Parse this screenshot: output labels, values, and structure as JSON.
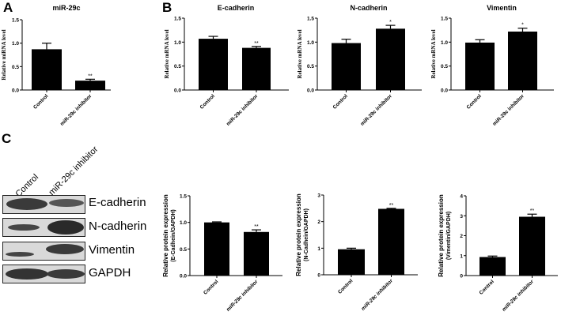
{
  "panels": {
    "A": "A",
    "B": "B",
    "C": "C"
  },
  "western_blot": {
    "lanes": [
      "Control",
      "miR-29c inhibitor"
    ],
    "bands": [
      "E-cadherin",
      "N-cadherin",
      "Vimentin",
      "GAPDH"
    ]
  },
  "chart_data": [
    {
      "id": "A",
      "type": "bar",
      "title": "miR-29c",
      "ylabel": "Relative miRNA level",
      "xlabel": "",
      "categories": [
        "Control",
        "miR-29c inhibitor"
      ],
      "values": [
        0.87,
        0.2
      ],
      "errors": [
        0.13,
        0.03
      ],
      "significance": [
        "",
        "**"
      ],
      "ylim": [
        0,
        1.5
      ],
      "yticks": [
        "0.0",
        "0.5",
        "1.0",
        "1.5"
      ],
      "grid": false
    },
    {
      "id": "B1",
      "type": "bar",
      "title": "E-cadherin",
      "ylabel": "Relative mRNA level",
      "xlabel": "",
      "categories": [
        "Control",
        "miR-29c inhibitor"
      ],
      "values": [
        1.07,
        0.88
      ],
      "errors": [
        0.05,
        0.03
      ],
      "significance": [
        "",
        "**"
      ],
      "ylim": [
        0,
        1.5
      ],
      "yticks": [
        "0.0",
        "0.5",
        "1.0",
        "1.5"
      ],
      "grid": false
    },
    {
      "id": "B2",
      "type": "bar",
      "title": "N-cadherin",
      "ylabel": "Relative mRNA level",
      "xlabel": "",
      "categories": [
        "Control",
        "miR-29c inhibitor"
      ],
      "values": [
        0.98,
        1.28
      ],
      "errors": [
        0.08,
        0.07
      ],
      "significance": [
        "",
        "*"
      ],
      "ylim": [
        0,
        1.5
      ],
      "yticks": [
        "0.0",
        "0.5",
        "1.0",
        "1.5"
      ],
      "grid": false
    },
    {
      "id": "B3",
      "type": "bar",
      "title": "Vimentin",
      "ylabel": "Relative mRNA level",
      "xlabel": "",
      "categories": [
        "Control",
        "miR-29c inhibitor"
      ],
      "values": [
        0.99,
        1.22
      ],
      "errors": [
        0.06,
        0.07
      ],
      "significance": [
        "",
        "*"
      ],
      "ylim": [
        0,
        1.5
      ],
      "yticks": [
        "0.0",
        "0.5",
        "1.0",
        "1.5"
      ],
      "grid": false
    },
    {
      "id": "C1",
      "type": "bar",
      "title": "",
      "ylabel": "Relative protein expression (E-Cadhein/GAPDH)",
      "ylabel_lines": [
        "Relative protein expression",
        "(E-Cadhein/GAPDH)"
      ],
      "xlabel": "",
      "categories": [
        "Control",
        "miR-29c inhibitor"
      ],
      "values": [
        1.0,
        0.82
      ],
      "errors": [
        0.01,
        0.04
      ],
      "significance": [
        "",
        "**"
      ],
      "ylim": [
        0,
        1.5
      ],
      "yticks": [
        "0.0",
        "0.5",
        "1.0",
        "1.5"
      ],
      "grid": false
    },
    {
      "id": "C2",
      "type": "bar",
      "title": "",
      "ylabel": "Relative protein expression (N-Cadhein/GAPDH)",
      "ylabel_lines": [
        "Relative protein expression",
        "(N-Cadhein/GAPDH)"
      ],
      "xlabel": "",
      "categories": [
        "Control",
        "miR-29c inhibitor"
      ],
      "values": [
        0.96,
        2.48
      ],
      "errors": [
        0.04,
        0.02
      ],
      "significance": [
        "",
        "**"
      ],
      "ylim": [
        0,
        3
      ],
      "yticks": [
        "0",
        "1",
        "2",
        "3"
      ],
      "grid": false
    },
    {
      "id": "C3",
      "type": "bar",
      "title": "",
      "ylabel": "Relative protein expression (Vimentin/GAPDH)",
      "ylabel_lines": [
        "Relative protein expression",
        "(Vimentin/GAPDH)"
      ],
      "xlabel": "",
      "categories": [
        "Control",
        "miR-29c inhibitor"
      ],
      "values": [
        0.93,
        2.95
      ],
      "errors": [
        0.05,
        0.13
      ],
      "significance": [
        "",
        "**"
      ],
      "ylim": [
        0,
        4
      ],
      "yticks": [
        "0",
        "1",
        "2",
        "3",
        "4"
      ],
      "grid": false
    }
  ]
}
